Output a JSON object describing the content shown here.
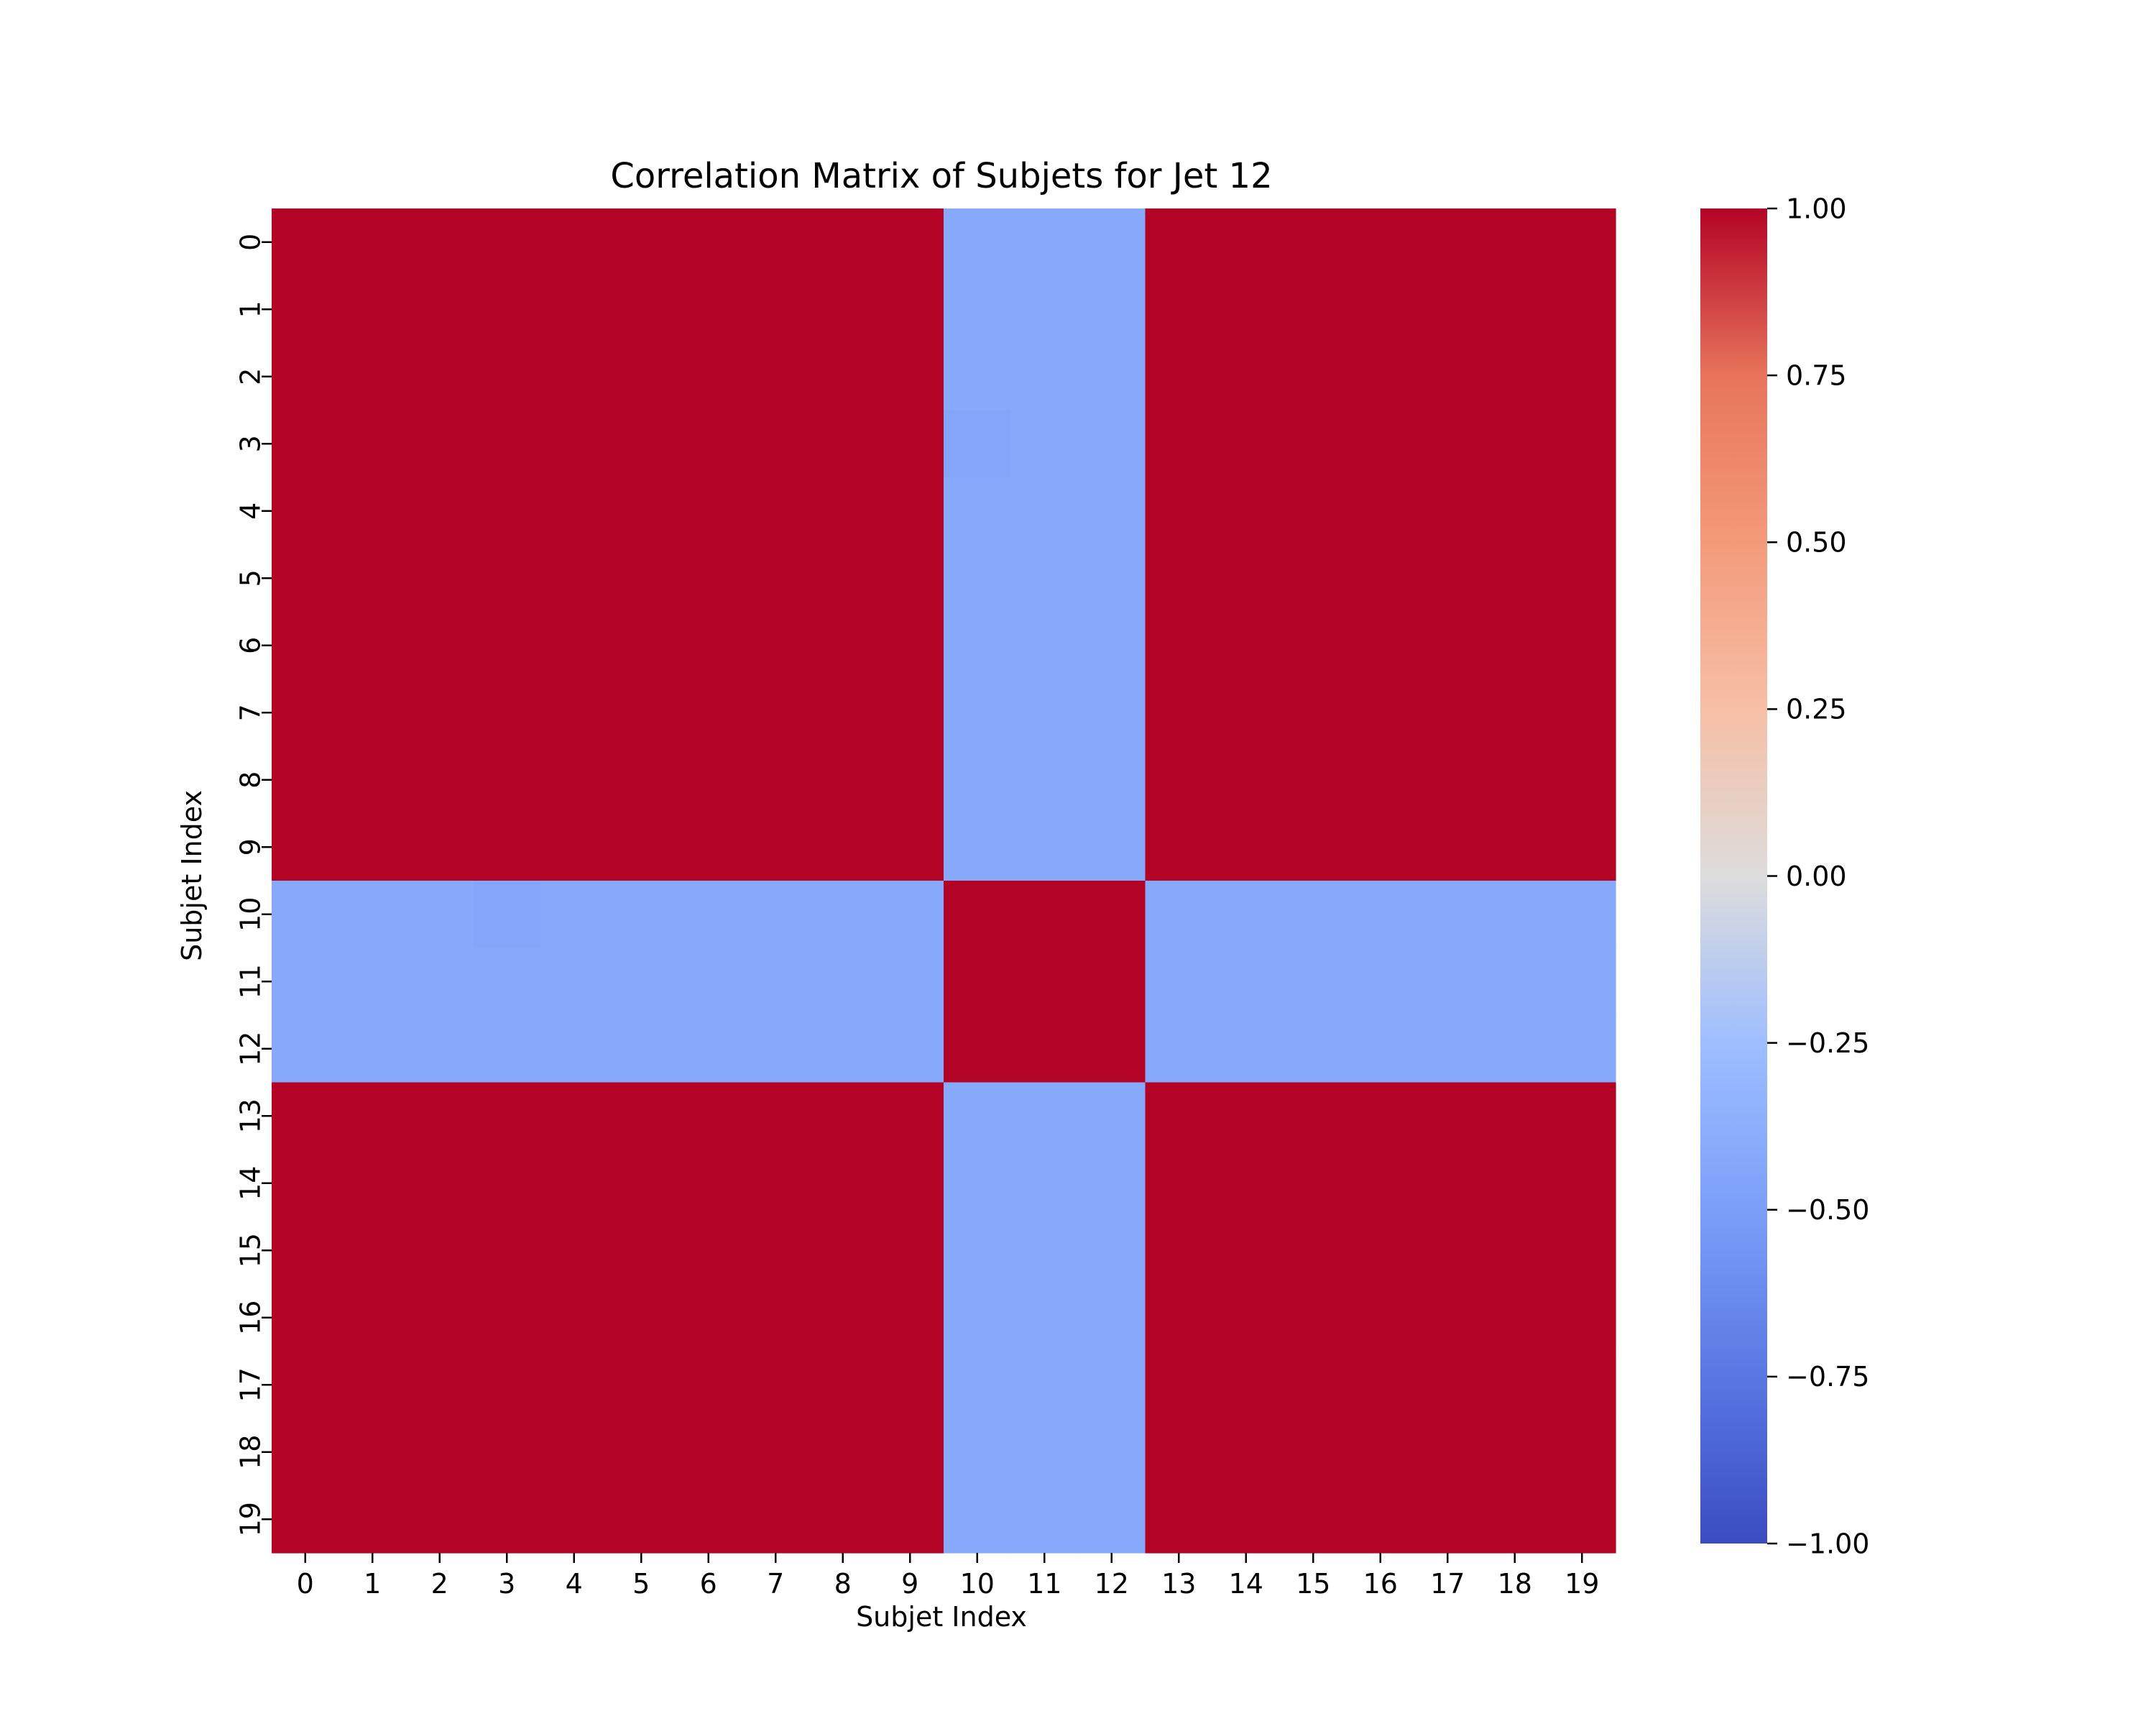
{
  "chart_data": {
    "type": "heatmap",
    "title": "Correlation Matrix of Subjets for Jet 12",
    "xlabel": "Subjet Index",
    "ylabel": "Subjet Index",
    "x_tick_labels": [
      "0",
      "1",
      "2",
      "3",
      "4",
      "5",
      "6",
      "7",
      "8",
      "9",
      "10",
      "11",
      "12",
      "13",
      "14",
      "15",
      "16",
      "17",
      "18",
      "19"
    ],
    "y_tick_labels": [
      "0",
      "1",
      "2",
      "3",
      "4",
      "5",
      "6",
      "7",
      "8",
      "9",
      "10",
      "11",
      "12",
      "13",
      "14",
      "15",
      "16",
      "17",
      "18",
      "19"
    ],
    "colormap": "coolwarm",
    "vmin": -1.0,
    "vmax": 1.0,
    "colorbar_ticks": [
      1.0,
      0.75,
      0.5,
      0.25,
      0.0,
      -0.25,
      -0.5,
      -0.75,
      -1.0
    ],
    "colorbar_tick_labels": [
      "1.00",
      "0.75",
      "0.50",
      "0.25",
      "0.00",
      "−0.25",
      "−0.50",
      "−0.75",
      "−1.00"
    ],
    "matrix": [
      [
        1,
        1,
        1,
        1,
        1,
        1,
        1,
        1,
        1,
        1,
        -0.42,
        -0.42,
        -0.42,
        1,
        1,
        1,
        1,
        1,
        1,
        1
      ],
      [
        1,
        1,
        1,
        1,
        1,
        1,
        1,
        1,
        1,
        1,
        -0.42,
        -0.42,
        -0.42,
        1,
        1,
        1,
        1,
        1,
        1,
        1
      ],
      [
        1,
        1,
        1,
        1,
        1,
        1,
        1,
        1,
        1,
        1,
        -0.42,
        -0.42,
        -0.42,
        1,
        1,
        1,
        1,
        1,
        1,
        1
      ],
      [
        1,
        1,
        1,
        1,
        1,
        1,
        1,
        1,
        1,
        1,
        -0.44,
        -0.42,
        -0.42,
        1,
        1,
        1,
        1,
        1,
        1,
        1
      ],
      [
        1,
        1,
        1,
        1,
        1,
        1,
        1,
        1,
        1,
        1,
        -0.42,
        -0.42,
        -0.42,
        1,
        1,
        1,
        1,
        1,
        1,
        1
      ],
      [
        1,
        1,
        1,
        1,
        1,
        1,
        1,
        1,
        1,
        1,
        -0.42,
        -0.42,
        -0.42,
        1,
        1,
        1,
        1,
        1,
        1,
        1
      ],
      [
        1,
        1,
        1,
        1,
        1,
        1,
        1,
        1,
        1,
        1,
        -0.42,
        -0.42,
        -0.42,
        1,
        1,
        1,
        1,
        1,
        1,
        1
      ],
      [
        1,
        1,
        1,
        1,
        1,
        1,
        1,
        1,
        1,
        1,
        -0.42,
        -0.42,
        -0.42,
        1,
        1,
        1,
        1,
        1,
        1,
        1
      ],
      [
        1,
        1,
        1,
        1,
        1,
        1,
        1,
        1,
        1,
        1,
        -0.42,
        -0.42,
        -0.42,
        1,
        1,
        1,
        1,
        1,
        1,
        1
      ],
      [
        1,
        1,
        1,
        1,
        1,
        1,
        1,
        1,
        1,
        1,
        -0.42,
        -0.42,
        -0.42,
        1,
        1,
        1,
        1,
        1,
        1,
        1
      ],
      [
        -0.42,
        -0.42,
        -0.42,
        -0.44,
        -0.42,
        -0.42,
        -0.42,
        -0.42,
        -0.42,
        -0.42,
        1,
        1,
        1,
        -0.42,
        -0.42,
        -0.42,
        -0.42,
        -0.42,
        -0.42,
        -0.42
      ],
      [
        -0.42,
        -0.42,
        -0.42,
        -0.42,
        -0.42,
        -0.42,
        -0.42,
        -0.42,
        -0.42,
        -0.42,
        1,
        1,
        1,
        -0.42,
        -0.42,
        -0.42,
        -0.42,
        -0.42,
        -0.42,
        -0.42
      ],
      [
        -0.42,
        -0.42,
        -0.42,
        -0.42,
        -0.42,
        -0.42,
        -0.42,
        -0.42,
        -0.42,
        -0.42,
        1,
        1,
        1,
        -0.42,
        -0.42,
        -0.42,
        -0.42,
        -0.42,
        -0.42,
        -0.42
      ],
      [
        1,
        1,
        1,
        1,
        1,
        1,
        1,
        1,
        1,
        1,
        -0.42,
        -0.42,
        -0.42,
        1,
        1,
        1,
        1,
        1,
        1,
        1
      ],
      [
        1,
        1,
        1,
        1,
        1,
        1,
        1,
        1,
        1,
        1,
        -0.42,
        -0.42,
        -0.42,
        1,
        1,
        1,
        1,
        1,
        1,
        1
      ],
      [
        1,
        1,
        1,
        1,
        1,
        1,
        1,
        1,
        1,
        1,
        -0.42,
        -0.42,
        -0.42,
        1,
        1,
        1,
        1,
        1,
        1,
        1
      ],
      [
        1,
        1,
        1,
        1,
        1,
        1,
        1,
        1,
        1,
        1,
        -0.42,
        -0.42,
        -0.42,
        1,
        1,
        1,
        1,
        1,
        1,
        1
      ],
      [
        1,
        1,
        1,
        1,
        1,
        1,
        1,
        1,
        1,
        1,
        -0.42,
        -0.42,
        -0.42,
        1,
        1,
        1,
        1,
        1,
        1,
        1
      ],
      [
        1,
        1,
        1,
        1,
        1,
        1,
        1,
        1,
        1,
        1,
        -0.42,
        -0.42,
        -0.42,
        1,
        1,
        1,
        1,
        1,
        1,
        1
      ],
      [
        1,
        1,
        1,
        1,
        1,
        1,
        1,
        1,
        1,
        1,
        -0.42,
        -0.42,
        -0.42,
        1,
        1,
        1,
        1,
        1,
        1,
        1
      ]
    ],
    "grid": false,
    "colorbar_position": "right"
  }
}
